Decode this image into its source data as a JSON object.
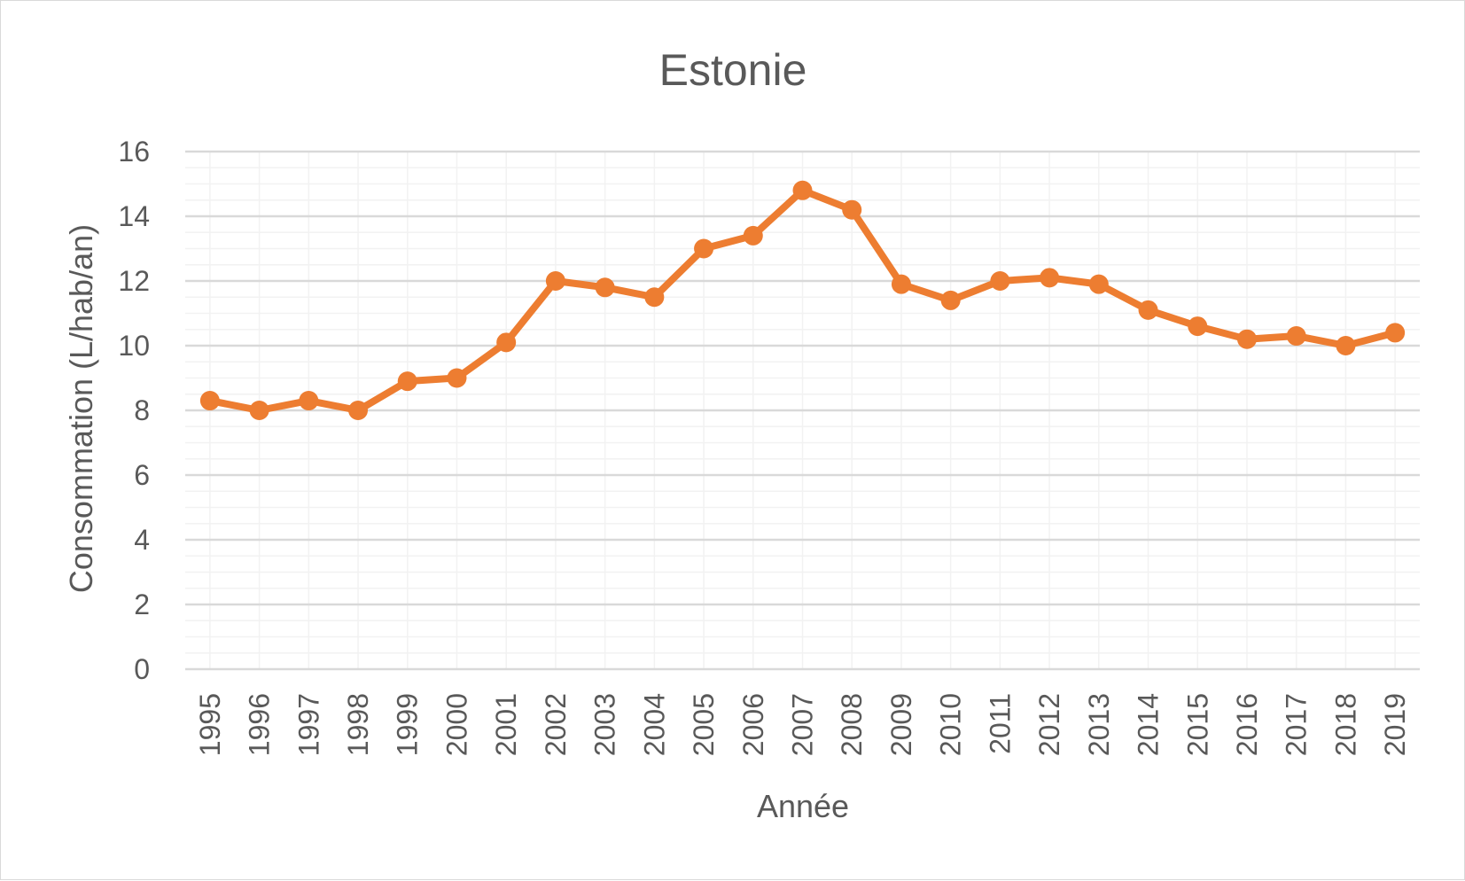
{
  "chart_data": {
    "type": "line",
    "title": "Estonie",
    "xlabel": "Année",
    "ylabel": "Consommation (L/hab/an)",
    "ylim": [
      0,
      16
    ],
    "yticks": [
      "0",
      "2",
      "4",
      "6",
      "8",
      "10",
      "12",
      "14",
      "16"
    ],
    "grid": true,
    "legend": "none",
    "line_color": "#ED7D31",
    "categories": [
      "1995",
      "1996",
      "1997",
      "1998",
      "1999",
      "2000",
      "2001",
      "2002",
      "2003",
      "2004",
      "2005",
      "2006",
      "2007",
      "2008",
      "2009",
      "2010",
      "2011",
      "2012",
      "2013",
      "2014",
      "2015",
      "2016",
      "2017",
      "2018",
      "2019"
    ],
    "series": [
      {
        "values": [
          8.3,
          8.0,
          8.3,
          8.0,
          8.9,
          9.0,
          10.1,
          12.0,
          11.8,
          11.5,
          13.0,
          13.4,
          14.8,
          14.2,
          11.9,
          11.4,
          12.0,
          12.1,
          11.9,
          11.1,
          10.6,
          10.2,
          10.3,
          10.0,
          10.4
        ]
      }
    ]
  }
}
